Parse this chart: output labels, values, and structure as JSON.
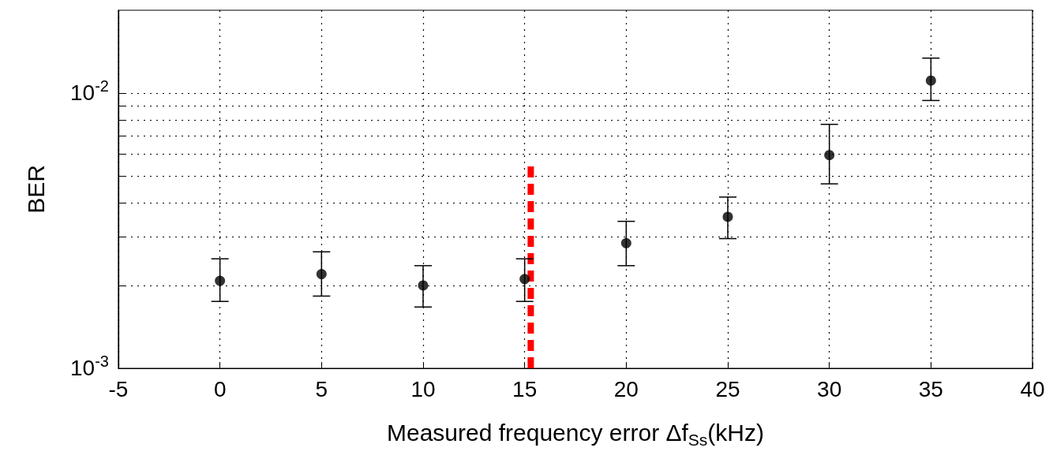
{
  "chart_data": {
    "type": "scatter",
    "xlabel": "Measured frequency error Δf$_{Ss}$(kHz)",
    "ylabel": "BER",
    "x": [
      0,
      5,
      10,
      15,
      20,
      25,
      30,
      35
    ],
    "series": [
      {
        "type": "scatter",
        "color": "#000000",
        "values": [
          0.00208,
          0.0022,
          0.002,
          0.00211,
          0.00285,
          0.00355,
          0.00595,
          0.0111
        ],
        "errors": [
          [
            0.00175,
            0.0025
          ],
          [
            0.00183,
            0.00265
          ],
          [
            0.00167,
            0.00236
          ],
          [
            0.00175,
            0.0025
          ],
          [
            0.00236,
            0.00342
          ],
          [
            0.00296,
            0.00419
          ],
          [
            0.00468,
            0.0077
          ],
          [
            0.0094,
            0.0134
          ]
        ],
        "marker": "circle"
      },
      {
        "type": "line",
        "color": "#ff0000",
        "x": [
          15.3,
          15.3
        ],
        "values": [
          0.001,
          0.0056
        ],
        "line_style": "dashed",
        "marker": "none"
      }
    ],
    "log": "y",
    "grid": true,
    "xlim": [
      -5,
      40
    ],
    "xticks": [
      -5,
      0,
      5,
      10,
      15,
      20,
      25,
      30,
      35,
      40
    ],
    "ylim": [
      0.001,
      0.02
    ],
    "yticks": [
      {
        "value": 0.001,
        "label": "10$^{-3}$"
      },
      {
        "value": 0.002,
        "label": null
      },
      {
        "value": 0.003,
        "label": null
      },
      {
        "value": 0.004,
        "label": null
      },
      {
        "value": 0.005,
        "label": null
      },
      {
        "value": 0.006,
        "label": null
      },
      {
        "value": 0.007,
        "label": null
      },
      {
        "value": 0.008,
        "label": null
      },
      {
        "value": 0.009,
        "label": null
      },
      {
        "value": 0.01,
        "label": "10$^{-2}$"
      }
    ]
  }
}
